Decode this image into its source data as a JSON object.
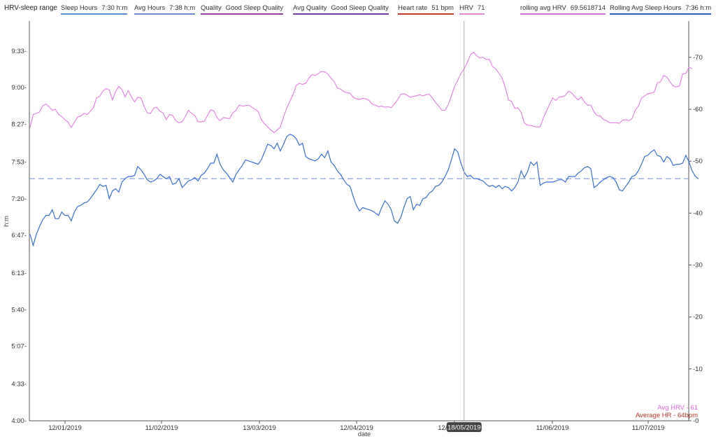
{
  "legend": {
    "title": "HRV-sleep range",
    "items": [
      {
        "label": "Sleep Hours",
        "value": "7:30 h:m",
        "color": "#5b8fd0"
      },
      {
        "label": "Avg Hours",
        "value": "7:38 h:m",
        "color": "#6a8fc8"
      },
      {
        "label": "Quality",
        "value": "Good Sleep Quality",
        "color": "#8a3d9a"
      },
      {
        "label": "Avg Quality",
        "value": "Good Sleep Quality",
        "color": "#7b3fa0"
      },
      {
        "label": "Heart rate",
        "value": "51 bpm",
        "color": "#c0392b"
      },
      {
        "label": "HRV",
        "value": "71",
        "color": "#e58ad8"
      },
      {
        "label": "rolling avg HRV",
        "value": "69.5618714",
        "color": "#d36ad0"
      },
      {
        "label": "Rolling Avg Sleep Hours",
        "value": "7:36 h:m",
        "color": "#2b5fbf"
      }
    ]
  },
  "colors": {
    "sleep_line": "#3a6fd8",
    "hrv_line": "#e27ee0",
    "avg_dashed": "#8fa8d6",
    "avg_hrv_note": "#e06ad8",
    "avg_hr_note": "#c0392b",
    "axis": "#555555",
    "cursor_line": "#aaaaaa",
    "tooltip_bg": "#444444"
  },
  "chart_data": {
    "type": "line",
    "xlabel": "date",
    "ylabel_left": "h:m",
    "x_tick_labels": [
      "12/01/2019",
      "11/02/2019",
      "13/03/2019",
      "12/04/2019",
      "12/05/2019",
      "11/06/2019",
      "11/07/2019"
    ],
    "y_left_ticks": [
      "4:00",
      "4:33",
      "5:07",
      "5:40",
      "6:13",
      "6:47",
      "7:20",
      "7:53",
      "8:27",
      "9:00",
      "9:33"
    ],
    "y_left_range_minutes": [
      240,
      600
    ],
    "y_right_ticks": [
      "0",
      "10",
      "20",
      "30",
      "40",
      "50",
      "60",
      "70"
    ],
    "y_right_range": [
      0,
      77
    ],
    "avg_sleep_minutes": 458,
    "cursor": {
      "date_label": "18/05/2019",
      "index": 137
    },
    "notes": {
      "avg_hrv": "Avg HRV - 61",
      "avg_hr": "Average HR - 64bpm"
    },
    "series": [
      {
        "name": "Sleep Hours",
        "values_minutes": [
          408,
          398,
          408,
          415,
          421,
          425,
          425,
          430,
          422,
          422,
          428,
          425,
          425,
          420,
          428,
          433,
          434,
          436,
          437,
          440,
          444,
          448,
          453,
          451,
          452,
          440,
          447,
          449,
          446,
          455,
          458,
          460,
          460,
          461,
          469,
          466,
          462,
          457,
          455,
          456,
          458,
          462,
          460,
          458,
          460,
          453,
          454,
          458,
          450,
          453,
          456,
          457,
          459,
          456,
          461,
          463,
          467,
          472,
          472,
          480,
          471,
          466,
          463,
          459,
          455,
          462,
          466,
          470,
          475,
          474,
          473,
          472,
          471,
          475,
          482,
          489,
          488,
          485,
          490,
          483,
          489,
          496,
          498,
          497,
          494,
          488,
          490,
          478,
          476,
          475,
          474,
          476,
          480,
          477,
          483,
          473,
          470,
          465,
          462,
          457,
          453,
          451,
          442,
          434,
          429,
          432,
          431,
          430,
          429,
          427,
          425,
          432,
          438,
          435,
          430,
          420,
          418,
          423,
          432,
          440,
          442,
          430,
          435,
          434,
          440,
          441,
          445,
          447,
          451,
          452,
          455,
          460,
          466,
          475,
          485,
          482,
          472,
          464,
          460,
          461,
          458,
          458,
          457,
          456,
          453,
          451,
          452,
          450,
          452,
          449,
          451,
          450,
          447,
          450,
          455,
          465,
          459,
          464,
          473,
          470,
          473,
          452,
          454,
          455,
          455,
          455,
          456,
          457,
          457,
          455,
          460,
          460,
          460,
          463,
          465,
          468,
          469,
          467,
          450,
          452,
          455,
          457,
          459,
          460,
          459,
          455,
          448,
          447,
          451,
          455,
          460,
          461,
          465,
          471,
          478,
          479,
          482,
          484,
          479,
          478,
          473,
          478,
          476,
          470,
          471,
          471,
          472,
          479,
          473,
          465,
          460,
          458
        ],
        "color": "#3a6fd8"
      },
      {
        "name": "HRV",
        "values": [
          56.5,
          59.0,
          59.2,
          59.5,
          60.7,
          61.0,
          60.5,
          59.8,
          60.0,
          59.0,
          58.6,
          58.0,
          57.5,
          56.5,
          57.5,
          58.5,
          58.7,
          59.2,
          59.0,
          59.6,
          60.3,
          62.2,
          62.5,
          63.5,
          64.0,
          63.7,
          61.8,
          63.4,
          64.4,
          63.8,
          62.4,
          63.6,
          62.4,
          61.4,
          62.3,
          62.2,
          60.6,
          59.3,
          59.2,
          60.2,
          60.4,
          59.6,
          59.3,
          58.0,
          59.0,
          58.8,
          57.8,
          57.4,
          57.6,
          58.6,
          59.8,
          59.2,
          58.8,
          57.6,
          57.6,
          57.7,
          58.8,
          59.9,
          59.7,
          58.4,
          57.8,
          58.4,
          58.3,
          58.2,
          59.3,
          59.8,
          60.8,
          60.6,
          60.7,
          60.8,
          60.4,
          60.0,
          59.6,
          58.0,
          57.2,
          56.6,
          56.0,
          55.5,
          56.0,
          56.6,
          58.5,
          60.2,
          61.5,
          62.8,
          64.6,
          65.0,
          64.8,
          65.0,
          66.0,
          66.7,
          66.5,
          66.9,
          67.3,
          67.2,
          66.8,
          66.0,
          65.3,
          64.1,
          63.9,
          63.4,
          63.2,
          63.1,
          62.3,
          62.0,
          61.9,
          62.1,
          62.0,
          61.7,
          61.0,
          60.8,
          60.5,
          60.6,
          60.4,
          60.5,
          60.3,
          61.0,
          61.8,
          62.9,
          63.0,
          62.7,
          62.3,
          62.5,
          62.6,
          62.8,
          62.6,
          62.8,
          62.9,
          62.2,
          61.3,
          60.6,
          59.8,
          59.8,
          60.9,
          62.6,
          64.4,
          65.6,
          66.9,
          67.8,
          69.0,
          70.5,
          71.0,
          70.3,
          69.9,
          70.0,
          69.6,
          69.6,
          68.2,
          67.8,
          66.9,
          66.0,
          64.2,
          61.8,
          61.5,
          60.2,
          60.3,
          59.4,
          57.4,
          56.9,
          56.9,
          56.7,
          56.6,
          56.6,
          58.3,
          59.6,
          61.0,
          62.2,
          61.7,
          62.4,
          62.4,
          62.7,
          63.5,
          63.1,
          62.4,
          61.8,
          62.4,
          61.4,
          60.8,
          60.8,
          59.5,
          58.8,
          58.7,
          58.0,
          57.8,
          57.4,
          57.4,
          57.4,
          57.3,
          57.9,
          58.0,
          57.8,
          58.2,
          59.8,
          60.6,
          62.1,
          62.6,
          63.0,
          63.1,
          63.3,
          65.1,
          65.3,
          66.5,
          66.2,
          65.3,
          64.5,
          64.3,
          64.5,
          66.8,
          66.9,
          68.1,
          67.8
        ],
        "color": "#e27ee0"
      }
    ]
  }
}
